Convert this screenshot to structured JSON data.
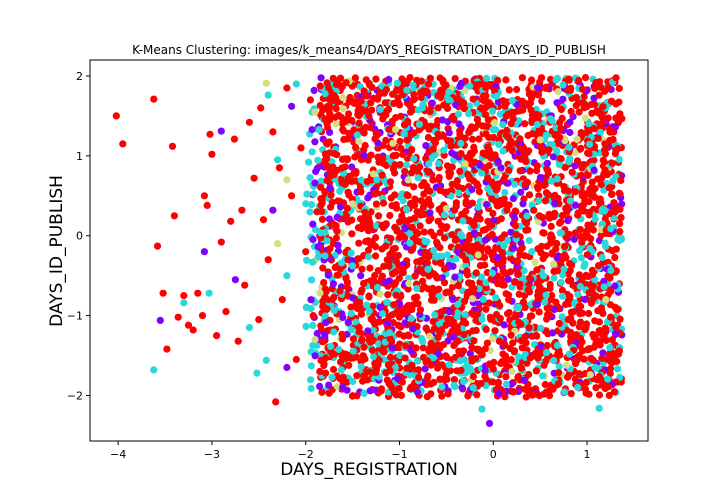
{
  "chart_data": {
    "type": "scatter",
    "title": "K-Means Clustering: images/k_means4/DAYS_REGISTRATION_DAYS_ID_PUBLISH",
    "xlabel": "DAYS_REGISTRATION",
    "ylabel": "DAYS_ID_PUBLISH",
    "xlim": [
      -4.3,
      1.65
    ],
    "ylim": [
      -2.57,
      2.2
    ],
    "xticks": [
      -4,
      -3,
      -2,
      -1,
      0,
      1
    ],
    "yticks": [
      -2,
      -1,
      0,
      1,
      2
    ],
    "xtick_labels": [
      "−4",
      "−3",
      "−2",
      "−1",
      "0",
      "1"
    ],
    "ytick_labels": [
      "−2",
      "−1",
      "0",
      "1",
      "2"
    ],
    "grid": false,
    "series": [
      {
        "color": "#ff0000",
        "points": [
          [
            -4.02,
            1.5
          ],
          [
            -3.95,
            1.15
          ],
          [
            -3.62,
            1.71
          ],
          [
            -3.58,
            -0.13
          ],
          [
            -3.52,
            -0.72
          ],
          [
            -3.48,
            -1.42
          ],
          [
            -3.42,
            1.12
          ],
          [
            -3.4,
            0.25
          ],
          [
            -3.36,
            -1.02
          ],
          [
            -3.3,
            -0.75
          ],
          [
            -3.25,
            -1.12
          ],
          [
            -3.2,
            -1.18
          ],
          [
            -3.15,
            -0.72
          ],
          [
            -3.1,
            -1.0
          ],
          [
            -3.08,
            0.5
          ],
          [
            -3.05,
            0.38
          ],
          [
            -3.02,
            1.27
          ],
          [
            -3.0,
            1.02
          ],
          [
            -2.95,
            -1.25
          ],
          [
            -2.9,
            -0.08
          ],
          [
            -2.85,
            -0.95
          ],
          [
            -2.8,
            0.18
          ],
          [
            -2.76,
            1.21
          ],
          [
            -2.72,
            -1.32
          ],
          [
            -2.68,
            0.32
          ],
          [
            -2.65,
            -0.62
          ],
          [
            -2.6,
            1.42
          ],
          [
            -2.55,
            0.72
          ],
          [
            -2.5,
            -1.05
          ],
          [
            -2.48,
            1.6
          ],
          [
            -2.45,
            0.2
          ],
          [
            -2.4,
            -0.3
          ],
          [
            -2.35,
            1.3
          ],
          [
            -2.32,
            -2.08
          ],
          [
            -2.28,
            0.85
          ],
          [
            -2.25,
            -0.8
          ],
          [
            -2.2,
            1.85
          ],
          [
            -2.15,
            0.5
          ],
          [
            -2.1,
            -1.55
          ],
          [
            -2.05,
            1.1
          ],
          [
            -2.0,
            -0.2
          ],
          [
            -1.95,
            1.7
          ],
          [
            -1.92,
            -1.0
          ],
          [
            -1.88,
            0.3
          ],
          [
            -1.85,
            -1.7
          ]
        ],
        "uniform_x": [
          -1.85,
          1.38
        ],
        "uniform_y": [
          -2.02,
          1.98
        ],
        "uniform_count": 2200
      },
      {
        "color": "#29d8d8",
        "points": [
          [
            -3.62,
            -1.68
          ],
          [
            -3.3,
            -0.84
          ],
          [
            -3.03,
            -0.72
          ],
          [
            -2.6,
            -1.15
          ],
          [
            -2.52,
            -1.72
          ],
          [
            -2.42,
            -1.56
          ],
          [
            -2.4,
            1.76
          ],
          [
            -2.3,
            0.95
          ],
          [
            -2.2,
            -0.5
          ],
          [
            -2.1,
            1.9
          ],
          [
            -0.12,
            -2.17
          ],
          [
            1.13,
            -2.16
          ],
          [
            0.9,
            -1.9
          ]
        ],
        "uniform_x": [
          -2.0,
          1.38
        ],
        "uniform_y": [
          -1.98,
          1.98
        ],
        "uniform_count": 750
      },
      {
        "color": "#8000ff",
        "points": [
          [
            -3.55,
            -1.06
          ],
          [
            -3.08,
            -0.2
          ],
          [
            -2.9,
            1.31
          ],
          [
            -2.75,
            -0.55
          ],
          [
            -2.35,
            0.32
          ],
          [
            -2.2,
            -1.65
          ],
          [
            -2.15,
            1.62
          ],
          [
            -0.04,
            -2.35
          ]
        ],
        "uniform_x": [
          -1.95,
          1.38
        ],
        "uniform_y": [
          -1.98,
          1.98
        ],
        "uniform_count": 360
      },
      {
        "color": "#d4dd80",
        "points": [
          [
            -2.42,
            1.91
          ],
          [
            -2.3,
            -0.1
          ],
          [
            -2.2,
            0.7
          ],
          [
            -1.9,
            -1.3
          ],
          [
            -1.5,
            0.4
          ],
          [
            -0.9,
            -0.6
          ],
          [
            0.5,
            1.2
          ],
          [
            1.2,
            -0.8
          ],
          [
            0.2,
            -1.7
          ],
          [
            -0.3,
            0.9
          ]
        ],
        "uniform_x": [
          -2.0,
          1.38
        ],
        "uniform_y": [
          -1.9,
          1.95
        ],
        "uniform_count": 90
      }
    ]
  }
}
